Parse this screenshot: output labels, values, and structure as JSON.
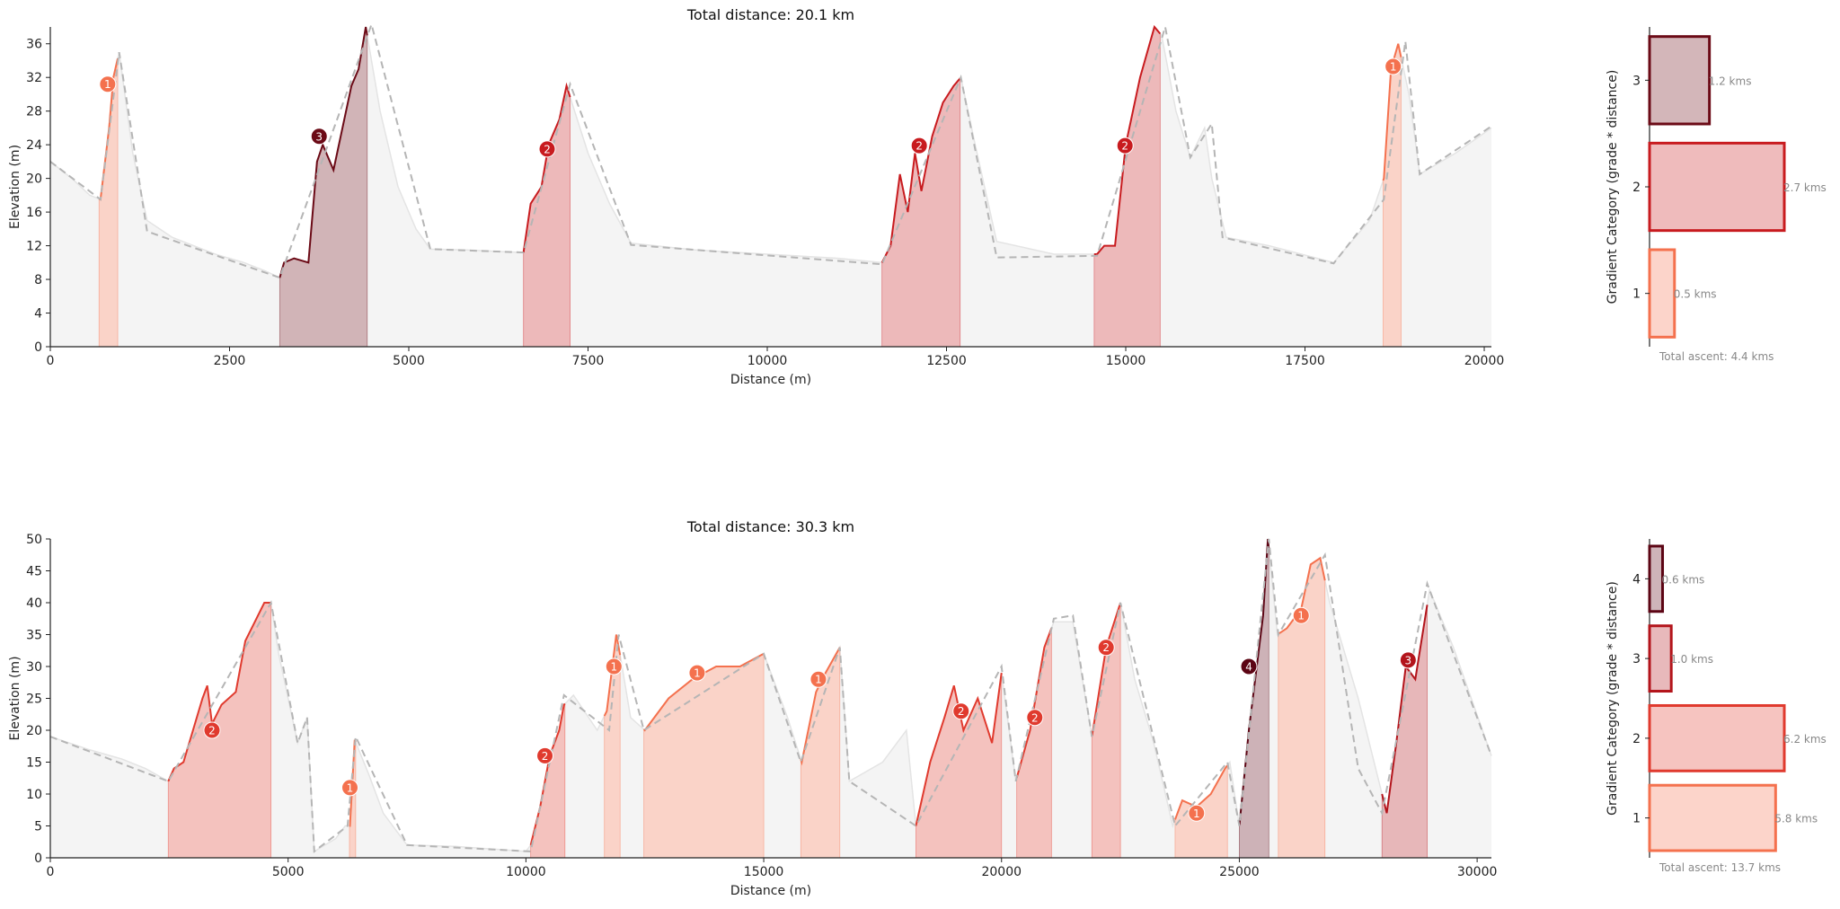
{
  "chart_data": [
    {
      "type": "area",
      "title": "Total distance: 20.1 km",
      "xlabel": "Distance (m)",
      "ylabel": "Elevation (m)",
      "xlim": [
        0,
        20100
      ],
      "ylim": [
        0,
        38
      ],
      "xticks": [
        0,
        2500,
        5000,
        7500,
        10000,
        12500,
        15000,
        17500,
        20000
      ],
      "yticks": [
        0,
        4,
        8,
        12,
        16,
        20,
        24,
        28,
        32,
        36
      ],
      "colors": {
        "1": "#f4714e",
        "2": "#c81b1f",
        "3": "#6b0a16",
        "base": "#ececec",
        "dashed": "#b5b5b5"
      },
      "profile": [
        [
          0,
          22
        ],
        [
          300,
          20
        ],
        [
          550,
          18
        ],
        [
          700,
          17.5
        ],
        [
          820,
          26
        ],
        [
          880,
          32
        ],
        [
          960,
          35
        ],
        [
          1150,
          23
        ],
        [
          1350,
          15
        ],
        [
          1700,
          13
        ],
        [
          2000,
          12
        ],
        [
          2300,
          11
        ],
        [
          2700,
          10
        ],
        [
          3000,
          9
        ],
        [
          3200,
          8.2
        ],
        [
          3260,
          10
        ],
        [
          3400,
          10.5
        ],
        [
          3600,
          10
        ],
        [
          3720,
          22
        ],
        [
          3800,
          24
        ],
        [
          3950,
          21
        ],
        [
          4050,
          25
        ],
        [
          4200,
          31
        ],
        [
          4300,
          33
        ],
        [
          4400,
          38
        ],
        [
          4600,
          28
        ],
        [
          4850,
          19
        ],
        [
          5100,
          14
        ],
        [
          5300,
          11.6
        ],
        [
          5800,
          11.5
        ],
        [
          6300,
          11.3
        ],
        [
          6600,
          11.2
        ],
        [
          6700,
          17
        ],
        [
          6850,
          19
        ],
        [
          6950,
          24
        ],
        [
          7100,
          27
        ],
        [
          7200,
          31
        ],
        [
          7500,
          23
        ],
        [
          7800,
          17
        ],
        [
          8100,
          12.3
        ],
        [
          9000,
          11.5
        ],
        [
          10000,
          11
        ],
        [
          11000,
          10.5
        ],
        [
          11600,
          10
        ],
        [
          11720,
          12
        ],
        [
          11850,
          20.5
        ],
        [
          11960,
          16
        ],
        [
          12060,
          23
        ],
        [
          12150,
          18.5
        ],
        [
          12300,
          25
        ],
        [
          12450,
          29
        ],
        [
          12600,
          31
        ],
        [
          12700,
          32
        ],
        [
          12900,
          24
        ],
        [
          13200,
          12.5
        ],
        [
          14000,
          11
        ],
        [
          14600,
          11
        ],
        [
          14700,
          12
        ],
        [
          14850,
          12
        ],
        [
          15000,
          24
        ],
        [
          15200,
          32
        ],
        [
          15400,
          38
        ],
        [
          15500,
          37
        ],
        [
          15700,
          28
        ],
        [
          15900,
          22.5
        ],
        [
          16100,
          26
        ],
        [
          16200,
          20
        ],
        [
          16400,
          13
        ],
        [
          17000,
          12
        ],
        [
          17900,
          10
        ],
        [
          18400,
          15
        ],
        [
          18600,
          20
        ],
        [
          18700,
          33
        ],
        [
          18800,
          36
        ],
        [
          18950,
          30
        ],
        [
          19100,
          20.5
        ],
        [
          19600,
          23
        ],
        [
          20100,
          26
        ]
      ],
      "climbs": [
        {
          "category": 1,
          "start": 680,
          "end": 940,
          "label_x": 800,
          "label_y": 31.2
        },
        {
          "category": 3,
          "start": 3200,
          "end": 4420,
          "label_x": 3750,
          "label_y": 25
        },
        {
          "category": 2,
          "start": 6600,
          "end": 7250,
          "label_x": 6930,
          "label_y": 23.5
        },
        {
          "category": 2,
          "start": 11600,
          "end": 12690,
          "label_x": 12120,
          "label_y": 23.9
        },
        {
          "category": 2,
          "start": 14560,
          "end": 15480,
          "label_x": 14990,
          "label_y": 23.9
        },
        {
          "category": 1,
          "start": 18590,
          "end": 18840,
          "label_x": 18730,
          "label_y": 33.3
        }
      ],
      "dashed_line": [
        [
          0,
          22
        ],
        [
          700,
          17.5
        ],
        [
          960,
          35
        ],
        [
          1350,
          13.7
        ],
        [
          3200,
          8.2
        ],
        [
          4480,
          38.3
        ],
        [
          5300,
          11.6
        ],
        [
          6600,
          11.2
        ],
        [
          7250,
          31.2
        ],
        [
          8100,
          12.1
        ],
        [
          11600,
          9.8
        ],
        [
          12700,
          32
        ],
        [
          13200,
          10.6
        ],
        [
          14600,
          10.8
        ],
        [
          15550,
          38
        ],
        [
          15900,
          22.5
        ],
        [
          16200,
          26.5
        ],
        [
          16350,
          13
        ],
        [
          17900,
          9.9
        ],
        [
          18600,
          17.5
        ],
        [
          18900,
          36.3
        ],
        [
          19100,
          20.5
        ],
        [
          20100,
          26.2
        ]
      ],
      "bar_chart": {
        "type": "bar",
        "orientation": "horizontal",
        "ylabel": "Gradient Category (grade * distance)",
        "categories": [
          "1",
          "2",
          "3"
        ],
        "values": [
          0.5,
          2.7,
          1.2
        ],
        "labels": [
          "0.5 kms",
          "2.7 kms",
          "1.2 kms"
        ],
        "total_label": "Total ascent:  4.4 kms"
      }
    },
    {
      "type": "area",
      "title": "Total distance: 30.3 km",
      "xlabel": "Distance (m)",
      "ylabel": "Elevation (m)",
      "xlim": [
        0,
        30300
      ],
      "ylim": [
        0,
        50
      ],
      "xticks": [
        0,
        5000,
        10000,
        15000,
        20000,
        25000,
        30000
      ],
      "yticks": [
        0,
        5,
        10,
        15,
        20,
        25,
        30,
        35,
        40,
        45,
        50
      ],
      "colors": {
        "1": "#f4714e",
        "2": "#e03a2e",
        "3": "#b3141b",
        "4": "#5c0514",
        "base": "#ececec",
        "dashed": "#b5b5b5"
      },
      "profile": [
        [
          0,
          19
        ],
        [
          800,
          17
        ],
        [
          1500,
          15.5
        ],
        [
          2000,
          14
        ],
        [
          2480,
          12
        ],
        [
          2600,
          14
        ],
        [
          2800,
          15
        ],
        [
          3000,
          20
        ],
        [
          3200,
          25
        ],
        [
          3300,
          27
        ],
        [
          3400,
          21
        ],
        [
          3600,
          24
        ],
        [
          3900,
          26
        ],
        [
          4100,
          34
        ],
        [
          4300,
          37
        ],
        [
          4500,
          40
        ],
        [
          4640,
          40
        ],
        [
          4800,
          32
        ],
        [
          5000,
          25
        ],
        [
          5200,
          18
        ],
        [
          5400,
          22
        ],
        [
          5550,
          1
        ],
        [
          6000,
          3
        ],
        [
          6200,
          5
        ],
        [
          6300,
          5
        ],
        [
          6400,
          18.5
        ],
        [
          6700,
          13
        ],
        [
          7000,
          7
        ],
        [
          7500,
          2
        ],
        [
          8500,
          1.8
        ],
        [
          10000,
          1
        ],
        [
          10100,
          2
        ],
        [
          10300,
          8
        ],
        [
          10500,
          16
        ],
        [
          10700,
          20
        ],
        [
          10800,
          24
        ],
        [
          11000,
          25.5
        ],
        [
          11500,
          20
        ],
        [
          11700,
          23
        ],
        [
          11900,
          35
        ],
        [
          12000,
          31
        ],
        [
          12200,
          22
        ],
        [
          12500,
          20
        ],
        [
          13000,
          25
        ],
        [
          13500,
          28
        ],
        [
          14000,
          30
        ],
        [
          14500,
          30
        ],
        [
          15000,
          32
        ],
        [
          15500,
          22
        ],
        [
          15800,
          15
        ],
        [
          16100,
          26
        ],
        [
          16300,
          29
        ],
        [
          16600,
          33
        ],
        [
          16800,
          12
        ],
        [
          17500,
          15
        ],
        [
          18000,
          20
        ],
        [
          18200,
          5
        ],
        [
          18500,
          15
        ],
        [
          18800,
          22
        ],
        [
          19000,
          27
        ],
        [
          19200,
          20
        ],
        [
          19500,
          25
        ],
        [
          19800,
          18
        ],
        [
          20000,
          29
        ],
        [
          20300,
          12
        ],
        [
          20600,
          20
        ],
        [
          20900,
          33
        ],
        [
          21100,
          37
        ],
        [
          21500,
          37
        ],
        [
          21900,
          19
        ],
        [
          22200,
          33
        ],
        [
          22500,
          40
        ],
        [
          22800,
          28
        ],
        [
          23200,
          18
        ],
        [
          23600,
          5
        ],
        [
          23800,
          9
        ],
        [
          24100,
          8
        ],
        [
          24400,
          10
        ],
        [
          24700,
          14
        ],
        [
          24800,
          15
        ],
        [
          25000,
          5
        ],
        [
          25200,
          20
        ],
        [
          25500,
          38
        ],
        [
          25600,
          50
        ],
        [
          25800,
          35
        ],
        [
          26000,
          36
        ],
        [
          26300,
          39
        ],
        [
          26500,
          46
        ],
        [
          26700,
          47
        ],
        [
          26900,
          40
        ],
        [
          27500,
          25
        ],
        [
          28000,
          10
        ],
        [
          28100,
          7
        ],
        [
          28300,
          18
        ],
        [
          28500,
          30
        ],
        [
          28700,
          28
        ],
        [
          29000,
          42
        ],
        [
          29500,
          33
        ],
        [
          30300,
          16
        ]
      ],
      "climbs": [
        {
          "category": 2,
          "start": 2480,
          "end": 4640,
          "label_x": 3400,
          "label_y": 20
        },
        {
          "category": 1,
          "start": 6290,
          "end": 6420,
          "label_x": 6300,
          "label_y": 11
        },
        {
          "category": 2,
          "start": 10100,
          "end": 10820,
          "label_x": 10400,
          "label_y": 16
        },
        {
          "category": 1,
          "start": 11650,
          "end": 11980,
          "label_x": 11850,
          "label_y": 30
        },
        {
          "category": 1,
          "start": 12480,
          "end": 15000,
          "label_x": 13600,
          "label_y": 29
        },
        {
          "category": 1,
          "start": 15780,
          "end": 16600,
          "label_x": 16150,
          "label_y": 28
        },
        {
          "category": 2,
          "start": 18200,
          "end": 20000,
          "label_x": 19150,
          "label_y": 23
        },
        {
          "category": 2,
          "start": 20320,
          "end": 21050,
          "label_x": 20700,
          "label_y": 22
        },
        {
          "category": 2,
          "start": 21900,
          "end": 22500,
          "label_x": 22200,
          "label_y": 33
        },
        {
          "category": 1,
          "start": 23650,
          "end": 24750,
          "label_x": 24100,
          "label_y": 7
        },
        {
          "category": 4,
          "start": 25000,
          "end": 25620,
          "label_x": 25200,
          "label_y": 30
        },
        {
          "category": 1,
          "start": 25820,
          "end": 26800,
          "label_x": 26300,
          "label_y": 38
        },
        {
          "category": 3,
          "start": 28000,
          "end": 28950,
          "label_x": 28550,
          "label_y": 31
        }
      ],
      "dashed_line": [
        [
          0,
          19
        ],
        [
          2480,
          12
        ],
        [
          4640,
          40
        ],
        [
          5200,
          18
        ],
        [
          5400,
          22
        ],
        [
          5550,
          1
        ],
        [
          6250,
          5
        ],
        [
          6420,
          19
        ],
        [
          7500,
          2
        ],
        [
          10100,
          1
        ],
        [
          10800,
          25.5
        ],
        [
          11750,
          20
        ],
        [
          11950,
          35
        ],
        [
          12480,
          20
        ],
        [
          15000,
          32
        ],
        [
          15780,
          15
        ],
        [
          16600,
          33
        ],
        [
          16800,
          12
        ],
        [
          18200,
          5
        ],
        [
          20000,
          30
        ],
        [
          20300,
          12
        ],
        [
          21100,
          37.5
        ],
        [
          21500,
          38
        ],
        [
          21900,
          19
        ],
        [
          22500,
          40
        ],
        [
          23650,
          5
        ],
        [
          24750,
          15
        ],
        [
          25000,
          5
        ],
        [
          25620,
          50
        ],
        [
          25820,
          35
        ],
        [
          26800,
          47.5
        ],
        [
          27500,
          14
        ],
        [
          28000,
          7
        ],
        [
          28950,
          43
        ],
        [
          30300,
          16
        ]
      ],
      "bar_chart": {
        "type": "bar",
        "orientation": "horizontal",
        "ylabel": "Gradient Category (grade * distance)",
        "categories": [
          "1",
          "2",
          "3",
          "4"
        ],
        "values": [
          5.8,
          6.2,
          1.0,
          0.6
        ],
        "labels": [
          "5.8 kms",
          "6.2 kms",
          "1.0 kms",
          "0.6 kms"
        ],
        "total_label": "Total ascent:  13.7 kms"
      }
    }
  ]
}
